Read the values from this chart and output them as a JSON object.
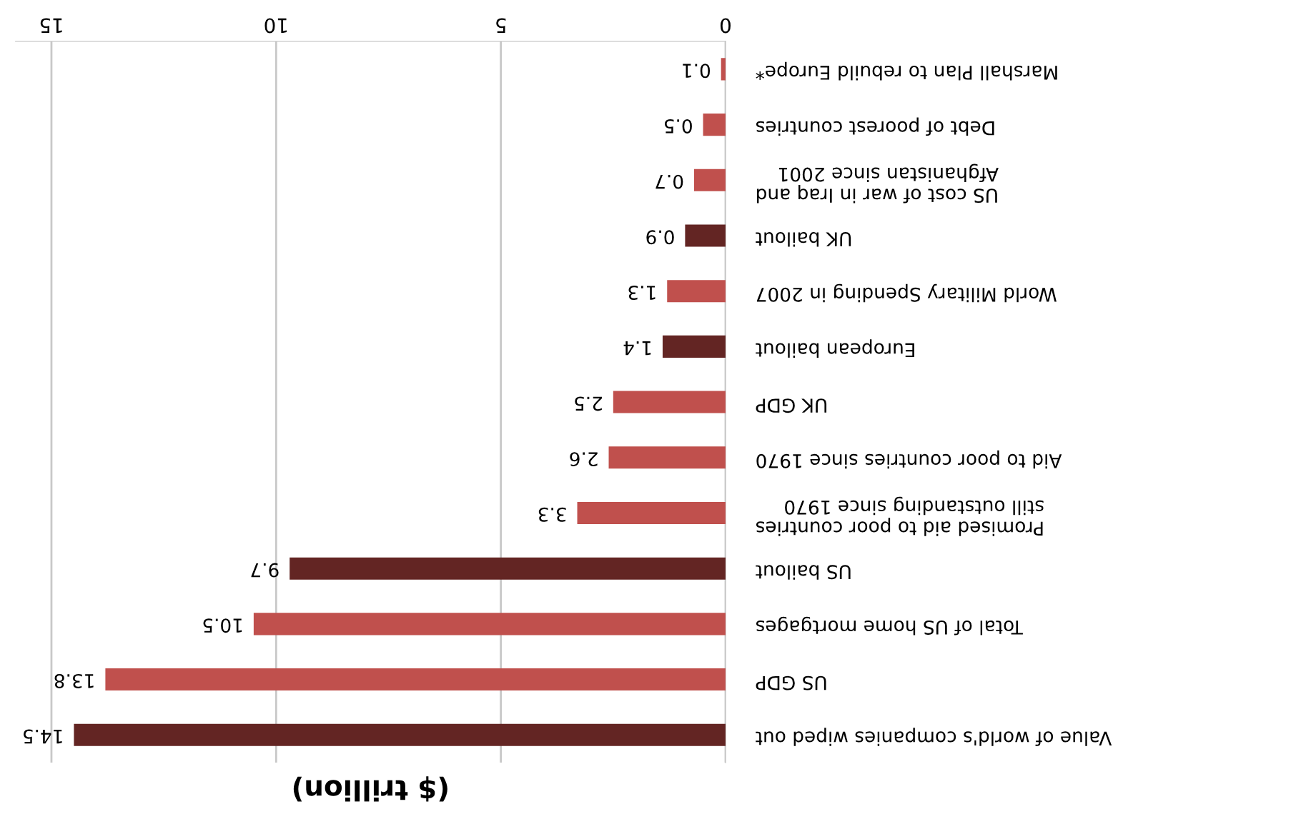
{
  "chart_data": {
    "type": "bar",
    "orientation": "horizontal",
    "xlabel": "($ trillion)",
    "categories": [
      "Marshall Plan to rebuild Europe*",
      "Debt of poorest countries",
      "US cost of war in Iraq and\nAfghanistan since 2001",
      "UK bailout",
      "World Military Spending in 2007",
      "European bailout",
      "UK GDP",
      "Aid to poor countries since 1970",
      "Promised aid to poor countries\nstill outstanding since 1970",
      "US bailout",
      "Total of US home mortgages",
      "US GDP",
      "Value of world's companies wiped out"
    ],
    "values": [
      0.1,
      0.5,
      0.7,
      0.9,
      1.3,
      1.4,
      2.5,
      2.6,
      3.3,
      9.7,
      10.5,
      13.8,
      14.5
    ],
    "colors": [
      "#c0504d",
      "#c0504d",
      "#c0504d",
      "#632523",
      "#c0504d",
      "#632523",
      "#c0504d",
      "#c0504d",
      "#c0504d",
      "#632523",
      "#c0504d",
      "#c0504d",
      "#632523"
    ],
    "xlim": [
      15.8,
      0
    ],
    "xticks": [
      0,
      5,
      10,
      15
    ],
    "grid": "x",
    "data_labels": true
  }
}
